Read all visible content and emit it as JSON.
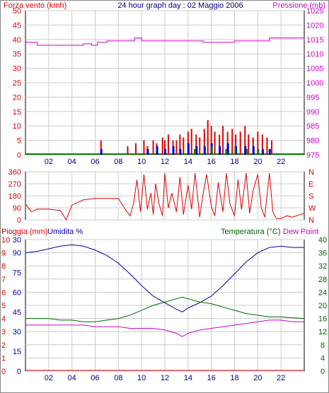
{
  "header": {
    "left_label": "Forza vento (kmh)",
    "title": "24 hour graph day : 02 Maggio 2006",
    "right_label": "Pressione (mb)"
  },
  "colors": {
    "wind": "#dd0000",
    "wind_blue": "#0000cc",
    "wind_green": "#008000",
    "pressure": "#cc00cc",
    "dir": "#dd0000",
    "rain": "#dd0000",
    "humidity": "#0000aa",
    "temperature": "#006600",
    "dewpoint": "#cc00cc",
    "grid": "#cccccc",
    "zero_line": "#008000"
  },
  "chart_data": [
    {
      "id": "wind_pressure",
      "type": "bar",
      "title": "24 hour graph day : 02 Maggio 2006",
      "ylabel": "Forza vento (kmh)",
      "y2label": "Pressione (mb)",
      "ylim": [
        0,
        50
      ],
      "y2lim": [
        975,
        1025
      ],
      "xlim": [
        0,
        24
      ],
      "x_ticks": [
        "02",
        "04",
        "06",
        "08",
        "10",
        "12",
        "14",
        "16",
        "18",
        "20",
        "22"
      ],
      "y_ticks": [
        0,
        5,
        10,
        15,
        20,
        25,
        30,
        35,
        40,
        45,
        50
      ],
      "y2_ticks": [
        975,
        980,
        985,
        990,
        995,
        1000,
        1005,
        1010,
        1015,
        1020,
        1025
      ],
      "pressure": {
        "x": [
          0,
          1,
          3,
          5,
          5.7,
          6.2,
          7,
          9,
          9.4,
          10,
          12,
          14,
          15.3,
          16,
          18,
          20,
          21,
          22,
          24
        ],
        "y": [
          1014,
          1013,
          1013,
          1013.5,
          1013,
          1014,
          1014.5,
          1014.5,
          1015.5,
          1014.5,
          1014.5,
          1014.5,
          1014,
          1014,
          1014.5,
          1014.5,
          1015.5,
          1015.5,
          1015.5
        ]
      },
      "wind_gust": {
        "x": [
          6.5,
          8.8,
          9.5,
          10.2,
          10.5,
          11,
          11.3,
          11.8,
          12,
          12.3,
          12.7,
          13,
          13.3,
          13.6,
          14,
          14.3,
          14.7,
          15,
          15.4,
          15.7,
          16,
          16.3,
          16.7,
          17,
          17.4,
          17.8,
          18.1,
          18.5,
          18.9,
          19.2,
          19.6,
          20,
          20.4,
          20.8,
          21.2
        ],
        "y": [
          5,
          3,
          4,
          5,
          3,
          5,
          4,
          6,
          5,
          7,
          5,
          5,
          7,
          6,
          8,
          9,
          7,
          6,
          9,
          12,
          10,
          8,
          7,
          10,
          8,
          9,
          7,
          8,
          10,
          7,
          6,
          8,
          7,
          6,
          5
        ]
      },
      "wind_avg": {
        "x": [
          6.5,
          10.5,
          11.3,
          12,
          12.7,
          13.3,
          14,
          14.7,
          15.4,
          16,
          16.7,
          17.4,
          18.1,
          18.9,
          19.6,
          20.4,
          21
        ],
        "y": [
          2,
          2,
          3,
          2,
          3,
          2,
          4,
          3,
          3,
          4,
          3,
          4,
          3,
          3,
          3,
          2,
          2
        ]
      },
      "wind_calm": {
        "x": [
          14.5,
          16,
          17.2,
          18,
          19,
          20
        ],
        "y": [
          2,
          3,
          2,
          3,
          2,
          2
        ]
      }
    },
    {
      "id": "wind_direction",
      "type": "line",
      "ylim": [
        0,
        360
      ],
      "y_ticks": [
        0,
        90,
        180,
        270,
        360
      ],
      "y_tick_labels": [
        "0",
        "90",
        "180",
        "270",
        "360"
      ],
      "compass": [
        "N",
        "W",
        "S",
        "E",
        "N"
      ],
      "x": [
        0,
        0.5,
        1,
        2,
        3,
        3.5,
        4,
        5,
        6,
        8,
        8.5,
        9,
        9.3,
        9.6,
        9.9,
        10.2,
        10.5,
        10.8,
        11,
        11.2,
        11.5,
        11.8,
        12,
        12.3,
        12.6,
        13,
        13.3,
        13.6,
        14,
        14.3,
        14.6,
        15,
        15.3,
        15.6,
        16,
        16.3,
        16.6,
        17,
        17.3,
        17.6,
        18,
        18.3,
        18.6,
        19,
        19.3,
        19.6,
        20,
        20.3,
        20.6,
        21,
        21.3,
        21.6,
        22,
        22.5,
        23,
        24
      ],
      "y": [
        120,
        60,
        80,
        80,
        70,
        0,
        110,
        150,
        160,
        160,
        90,
        30,
        120,
        300,
        60,
        340,
        80,
        200,
        40,
        270,
        120,
        30,
        350,
        90,
        200,
        60,
        320,
        40,
        260,
        80,
        350,
        20,
        200,
        340,
        100,
        30,
        280,
        60,
        350,
        120,
        30,
        300,
        80,
        350,
        50,
        220,
        340,
        90,
        20,
        350,
        60,
        10,
        10,
        30,
        20,
        50
      ]
    },
    {
      "id": "temp_hum_rain",
      "type": "line",
      "ylabel": "Pioggia (mm)",
      "ylabel2": "Umidita %",
      "y2label": "Temperatura (°C)",
      "y3label": "Dew Point",
      "rain_ticks": [
        "0",
        "1",
        "2",
        "3",
        "4",
        "5",
        "6",
        "7",
        "8",
        "9",
        "10"
      ],
      "humidity_ticks": [
        0,
        15,
        30,
        45,
        60,
        75,
        90
      ],
      "humidity_top_label": "30",
      "temp_ticks": [
        0,
        4,
        8,
        12,
        16,
        20,
        24,
        28,
        32,
        36,
        40
      ],
      "temp_ylim": [
        0,
        40
      ],
      "humidity_ylim": [
        0,
        100
      ],
      "humidity": {
        "x": [
          0,
          1,
          2,
          3,
          4,
          5,
          6,
          7,
          8,
          9,
          10,
          11,
          12,
          13,
          13.5,
          14,
          15,
          16,
          17,
          18,
          19,
          20,
          21,
          22,
          23,
          24
        ],
        "y": [
          90,
          91,
          93,
          95,
          96,
          95,
          92,
          88,
          82,
          74,
          65,
          57,
          52,
          47,
          45,
          48,
          52,
          57,
          65,
          74,
          83,
          90,
          94,
          95,
          94,
          94
        ]
      },
      "temperature": {
        "x": [
          0,
          1,
          2,
          3,
          4,
          5,
          6,
          7,
          8,
          9,
          10,
          11,
          12,
          13,
          13.5,
          14,
          15,
          16,
          17,
          18,
          19,
          20,
          21,
          22,
          23,
          24
        ],
        "y": [
          16,
          16,
          16,
          15.5,
          15.5,
          15,
          15,
          15.5,
          16,
          17,
          18.5,
          20,
          21,
          22,
          22.5,
          22,
          21,
          20.5,
          19.5,
          18.5,
          17.5,
          17,
          16.5,
          16.5,
          16.2,
          16
        ]
      },
      "dewpoint": {
        "x": [
          0,
          1,
          2,
          3,
          4,
          5,
          6,
          7,
          8,
          9,
          10,
          11,
          12,
          13,
          13.5,
          14,
          15,
          16,
          17,
          18,
          19,
          20,
          21,
          22,
          23,
          24
        ],
        "y": [
          14,
          14,
          14,
          14,
          14,
          14,
          13.5,
          13.5,
          13.5,
          13,
          13,
          13,
          12.5,
          11.5,
          10.5,
          11.5,
          12.5,
          13,
          13.5,
          14,
          14.5,
          15,
          15.5,
          15.5,
          15,
          15
        ]
      },
      "rain": {
        "x": [
          0,
          24
        ],
        "y": [
          0,
          0
        ]
      }
    }
  ]
}
